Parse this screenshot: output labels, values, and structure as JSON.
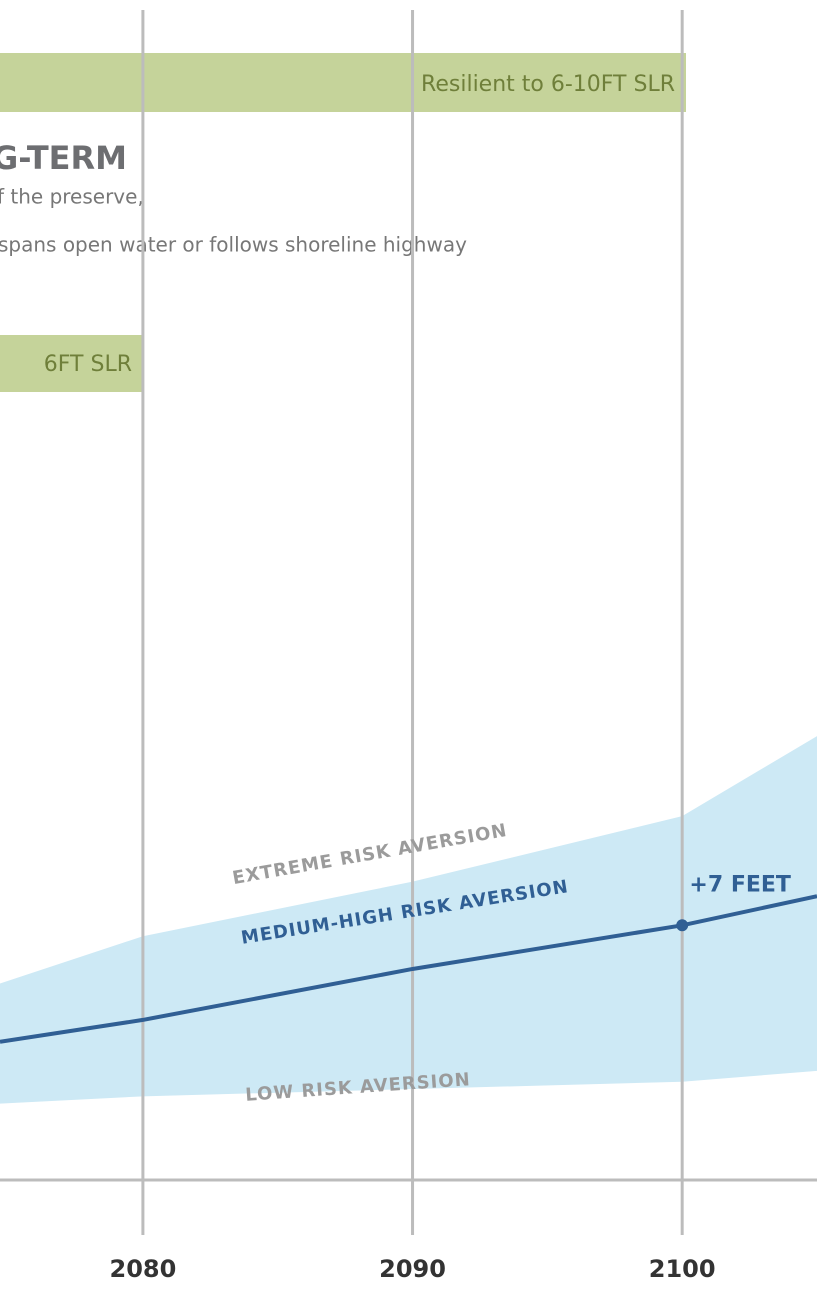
{
  "chart_data": {
    "type": "band-line",
    "title": "G-TERM",
    "text_lines": [
      "f the preserve,",
      "spans open water or follows shoreline highway"
    ],
    "banners": [
      "Resilient to 6-10FT SLR",
      "6FT SLR"
    ],
    "x": [
      2074.7,
      2080,
      2090,
      2100,
      2105
    ],
    "xlim": [
      2074.7,
      2105
    ],
    "xticks": [
      2080,
      2090,
      2100
    ],
    "ylim": [
      0,
      13
    ],
    "band_color": "#cde9f5",
    "series": [
      {
        "name": "EXTREME RISK AVERSION",
        "color": "#9b9b9b",
        "values": [
          5.4,
          6.7,
          8.2,
          10.0,
          12.2
        ]
      },
      {
        "name": "MEDIUM-HIGH RISK AVERSION",
        "color": "#305f94",
        "values": [
          3.8,
          4.4,
          5.8,
          7,
          7.8
        ]
      },
      {
        "name": "LOW RISK AVERSION",
        "color": "#9b9b9b",
        "values": [
          2.1,
          2.3,
          2.5,
          2.7,
          3.0
        ]
      }
    ],
    "annotations": [
      {
        "text": "+7 FEET",
        "x": 2100,
        "y": 7
      }
    ]
  }
}
